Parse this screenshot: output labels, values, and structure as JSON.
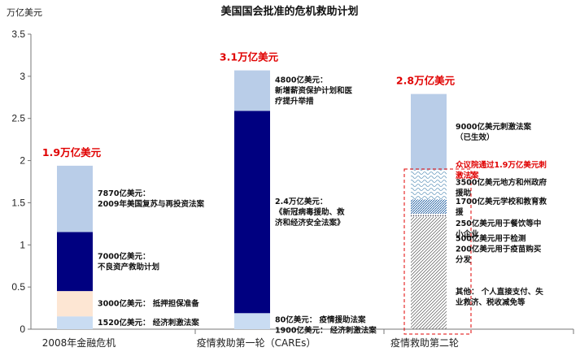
{
  "chart_data": {
    "type": "bar",
    "stacked": true,
    "title": "美国国会批准的危机救助计划",
    "ylabel": "万亿美元",
    "ylim": [
      0,
      3.5
    ],
    "yticks": [
      "0",
      "0.5",
      "1",
      "1.5",
      "2",
      "2.5",
      "3",
      "3.5"
    ],
    "grid": false,
    "categories": [
      "2008年金融危机",
      "疫情救助第一轮（CAREs）",
      "疫情救助第二轮"
    ],
    "totals": [
      "1.9万亿美元",
      "3.1万亿美元",
      "2.8万亿美元"
    ],
    "colors": {
      "light_blue": "#b9cde8",
      "navy": "#000080",
      "peach": "#fde6d3",
      "pale_blue": "#c9dcf2",
      "red": "#e00000"
    },
    "bars": [
      {
        "category": "2008年金融危机",
        "segments": [
          {
            "value": 0.152,
            "color": "#c9dcf2",
            "label": [
              "1520亿美元：  经济刺激法案"
            ]
          },
          {
            "value": 0.3,
            "color": "#fde6d3",
            "label": [
              "3000亿美元：  抵押担保准备"
            ]
          },
          {
            "value": 0.7,
            "color": "#000080",
            "label": [
              "7000亿美元：",
              "不良资产救助计划"
            ]
          },
          {
            "value": 0.787,
            "color": "#b9cde8",
            "label": [
              "7870亿美元：",
              "2009年美国复苏与再投资法案"
            ]
          }
        ]
      },
      {
        "category": "疫情救助第一轮（CAREs）",
        "segments": [
          {
            "value": 0.19,
            "color": "#c9dcf2",
            "label": [
              "80亿美元：  疫情援助法案",
              "1900亿美元：  经济刺激法案"
            ]
          },
          {
            "value": 2.4,
            "color": "#000080",
            "label": [
              "2.4万亿美元：",
              "《新冠病毒援助、救",
              "济和经济安全法案》"
            ]
          },
          {
            "value": 0.48,
            "color": "#b9cde8",
            "label": [
              "4800亿美元：",
              "新增薪资保护计划和医",
              "疗提升举措"
            ]
          }
        ]
      },
      {
        "category": "疫情救助第二轮",
        "segments": [
          {
            "value": 1.33,
            "color": "#ffffff",
            "pattern": "diagonal",
            "label": [
              "其他：  个人直接支付、失",
              "业救济、税收减免等"
            ]
          },
          {
            "value": 0.04,
            "color": "#ffffff",
            "pattern": "dots",
            "label": []
          },
          {
            "value": 0.17,
            "color": "#ffffff",
            "pattern": "dense",
            "label": []
          },
          {
            "value": 0.35,
            "color": "#ffffff",
            "pattern": "wave",
            "label": []
          },
          {
            "value": 0.9,
            "color": "#b9cde8",
            "label": [
              "9000亿美元刺激法案",
              "（已生效）"
            ]
          }
        ],
        "extra_labels": [
          {
            "lines": [
              "500亿美元用于检测",
              "200亿美元用于疫苗购买",
              "分发"
            ],
            "at": 0.95
          },
          {
            "lines": [
              "250亿美元用于餐饮等中",
              "小企业"
            ],
            "at": 1.19
          },
          {
            "lines": [
              "1700亿美元学校和教育救",
              "援"
            ],
            "at": 1.45
          },
          {
            "lines": [
              "3500亿美元地方和州政府",
              "援助"
            ],
            "at": 1.68
          }
        ],
        "bracket_note": [
          "众议院通过1.9万亿美元刺",
          "激法案"
        ],
        "bracket_range": [
          0,
          1.9
        ]
      }
    ]
  }
}
